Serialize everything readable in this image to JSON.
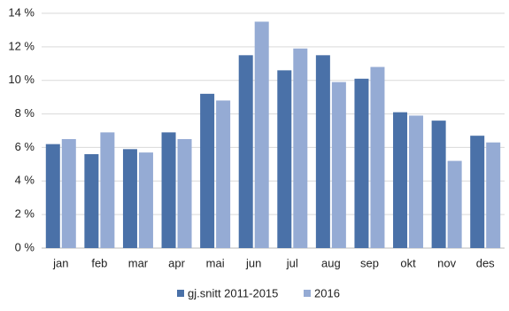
{
  "chart_data": {
    "type": "bar",
    "categories": [
      "jan",
      "feb",
      "mar",
      "apr",
      "mai",
      "jun",
      "jul",
      "aug",
      "sep",
      "okt",
      "nov",
      "des"
    ],
    "series": [
      {
        "name": "gj.snitt 2011-2015",
        "color": "#4a71a8",
        "values": [
          6.2,
          5.6,
          5.9,
          6.9,
          9.2,
          11.5,
          10.6,
          11.5,
          10.1,
          8.1,
          7.6,
          6.7
        ]
      },
      {
        "name": "2016",
        "color": "#95abd4",
        "values": [
          6.5,
          6.9,
          5.7,
          6.5,
          8.8,
          13.5,
          11.9,
          9.9,
          10.8,
          7.9,
          5.2,
          6.3
        ]
      }
    ],
    "ylim": [
      0,
      14
    ],
    "yticks": [
      {
        "value": 0,
        "label": "0 %"
      },
      {
        "value": 2,
        "label": "2 %"
      },
      {
        "value": 4,
        "label": "4 %"
      },
      {
        "value": 6,
        "label": "6 %"
      },
      {
        "value": 8,
        "label": "8 %"
      },
      {
        "value": 10,
        "label": "10 %"
      },
      {
        "value": 12,
        "label": "12 %"
      },
      {
        "value": 14,
        "label": "14 %"
      }
    ],
    "grid": true
  }
}
